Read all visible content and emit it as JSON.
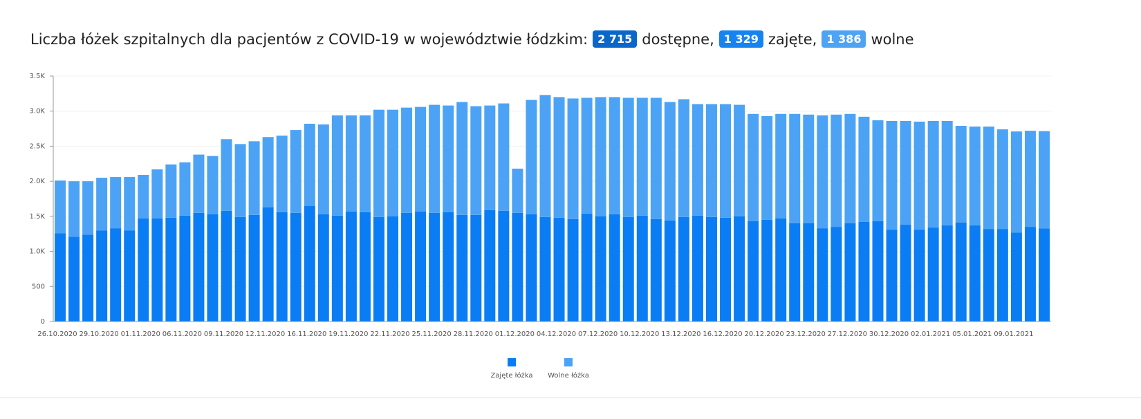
{
  "chart_data": {
    "type": "bar",
    "stacked": true,
    "title": {
      "text": "Liczba łóżek szpitalnych dla pacjentów z COVID-19 w województwie łódzkim:",
      "badges": [
        {
          "label": "2 715",
          "text": "dostępne,",
          "color": "#0b66c9"
        },
        {
          "label": "1 329",
          "text": "zajęte,",
          "color": "#1683f0"
        },
        {
          "label": "1 386",
          "text": "wolne",
          "color": "#4ea3f2"
        }
      ]
    },
    "categories": [
      "26.10.2020",
      null,
      null,
      "29.10.2020",
      null,
      null,
      "01.11.2020",
      null,
      null,
      "06.11.2020",
      null,
      null,
      "09.11.2020",
      null,
      null,
      "12.11.2020",
      null,
      null,
      "16.11.2020",
      null,
      null,
      "19.11.2020",
      null,
      null,
      "22.11.2020",
      null,
      null,
      "25.11.2020",
      null,
      null,
      "28.11.2020",
      null,
      null,
      "01.12.2020",
      null,
      null,
      "04.12.2020",
      null,
      null,
      "07.12.2020",
      null,
      null,
      "10.12.2020",
      null,
      null,
      "13.12.2020",
      null,
      null,
      "16.12.2020",
      null,
      null,
      "20.12.2020",
      null,
      null,
      "23.12.2020",
      null,
      null,
      "27.12.2020",
      null,
      null,
      "30.12.2020",
      null,
      null,
      "02.01.2021",
      null,
      null,
      "05.01.2021",
      null,
      null,
      "09.01.2021",
      null,
      null
    ],
    "series": [
      {
        "name": "Zajęte łóżka",
        "color": "#0a7df5",
        "values": [
          1260,
          1210,
          1240,
          1300,
          1330,
          1300,
          1470,
          1470,
          1480,
          1510,
          1550,
          1530,
          1580,
          1490,
          1520,
          1630,
          1560,
          1550,
          1650,
          1530,
          1510,
          1570,
          1560,
          1490,
          1500,
          1550,
          1570,
          1550,
          1560,
          1520,
          1520,
          1590,
          1580,
          1550,
          1530,
          1490,
          1480,
          1460,
          1540,
          1500,
          1530,
          1490,
          1510,
          1460,
          1440,
          1490,
          1510,
          1490,
          1480,
          1500,
          1430,
          1450,
          1470,
          1400,
          1400,
          1330,
          1350,
          1400,
          1420,
          1430,
          1310,
          1380,
          1310,
          1340,
          1370,
          1410,
          1370,
          1320,
          1320,
          1270,
          1350,
          1329
        ]
      },
      {
        "name": "Wolne łóżka",
        "color": "#4ca3f5",
        "values": [
          750,
          790,
          760,
          750,
          730,
          760,
          620,
          700,
          760,
          760,
          830,
          830,
          1020,
          1040,
          1050,
          1000,
          1090,
          1180,
          1170,
          1280,
          1430,
          1370,
          1380,
          1530,
          1520,
          1500,
          1490,
          1540,
          1520,
          1610,
          1550,
          1490,
          1530,
          630,
          1630,
          1740,
          1720,
          1720,
          1650,
          1700,
          1670,
          1700,
          1680,
          1730,
          1690,
          1680,
          1590,
          1610,
          1620,
          1590,
          1530,
          1480,
          1490,
          1560,
          1550,
          1610,
          1600,
          1560,
          1500,
          1440,
          1550,
          1480,
          1540,
          1520,
          1490,
          1380,
          1410,
          1460,
          1420,
          1440,
          1370,
          1386
        ]
      }
    ],
    "ylim": [
      0,
      3500
    ],
    "yticks": [
      0,
      500,
      {
        "value": 1000,
        "label": "1.0K"
      },
      {
        "value": 1500,
        "label": "1.5K"
      },
      {
        "value": 2000,
        "label": "2.0K"
      },
      {
        "value": 2500,
        "label": "2.5K"
      },
      {
        "value": 3000,
        "label": "3.0K"
      },
      {
        "value": 3500,
        "label": "3.5K"
      }
    ],
    "grid": true,
    "legend": "bottom"
  }
}
